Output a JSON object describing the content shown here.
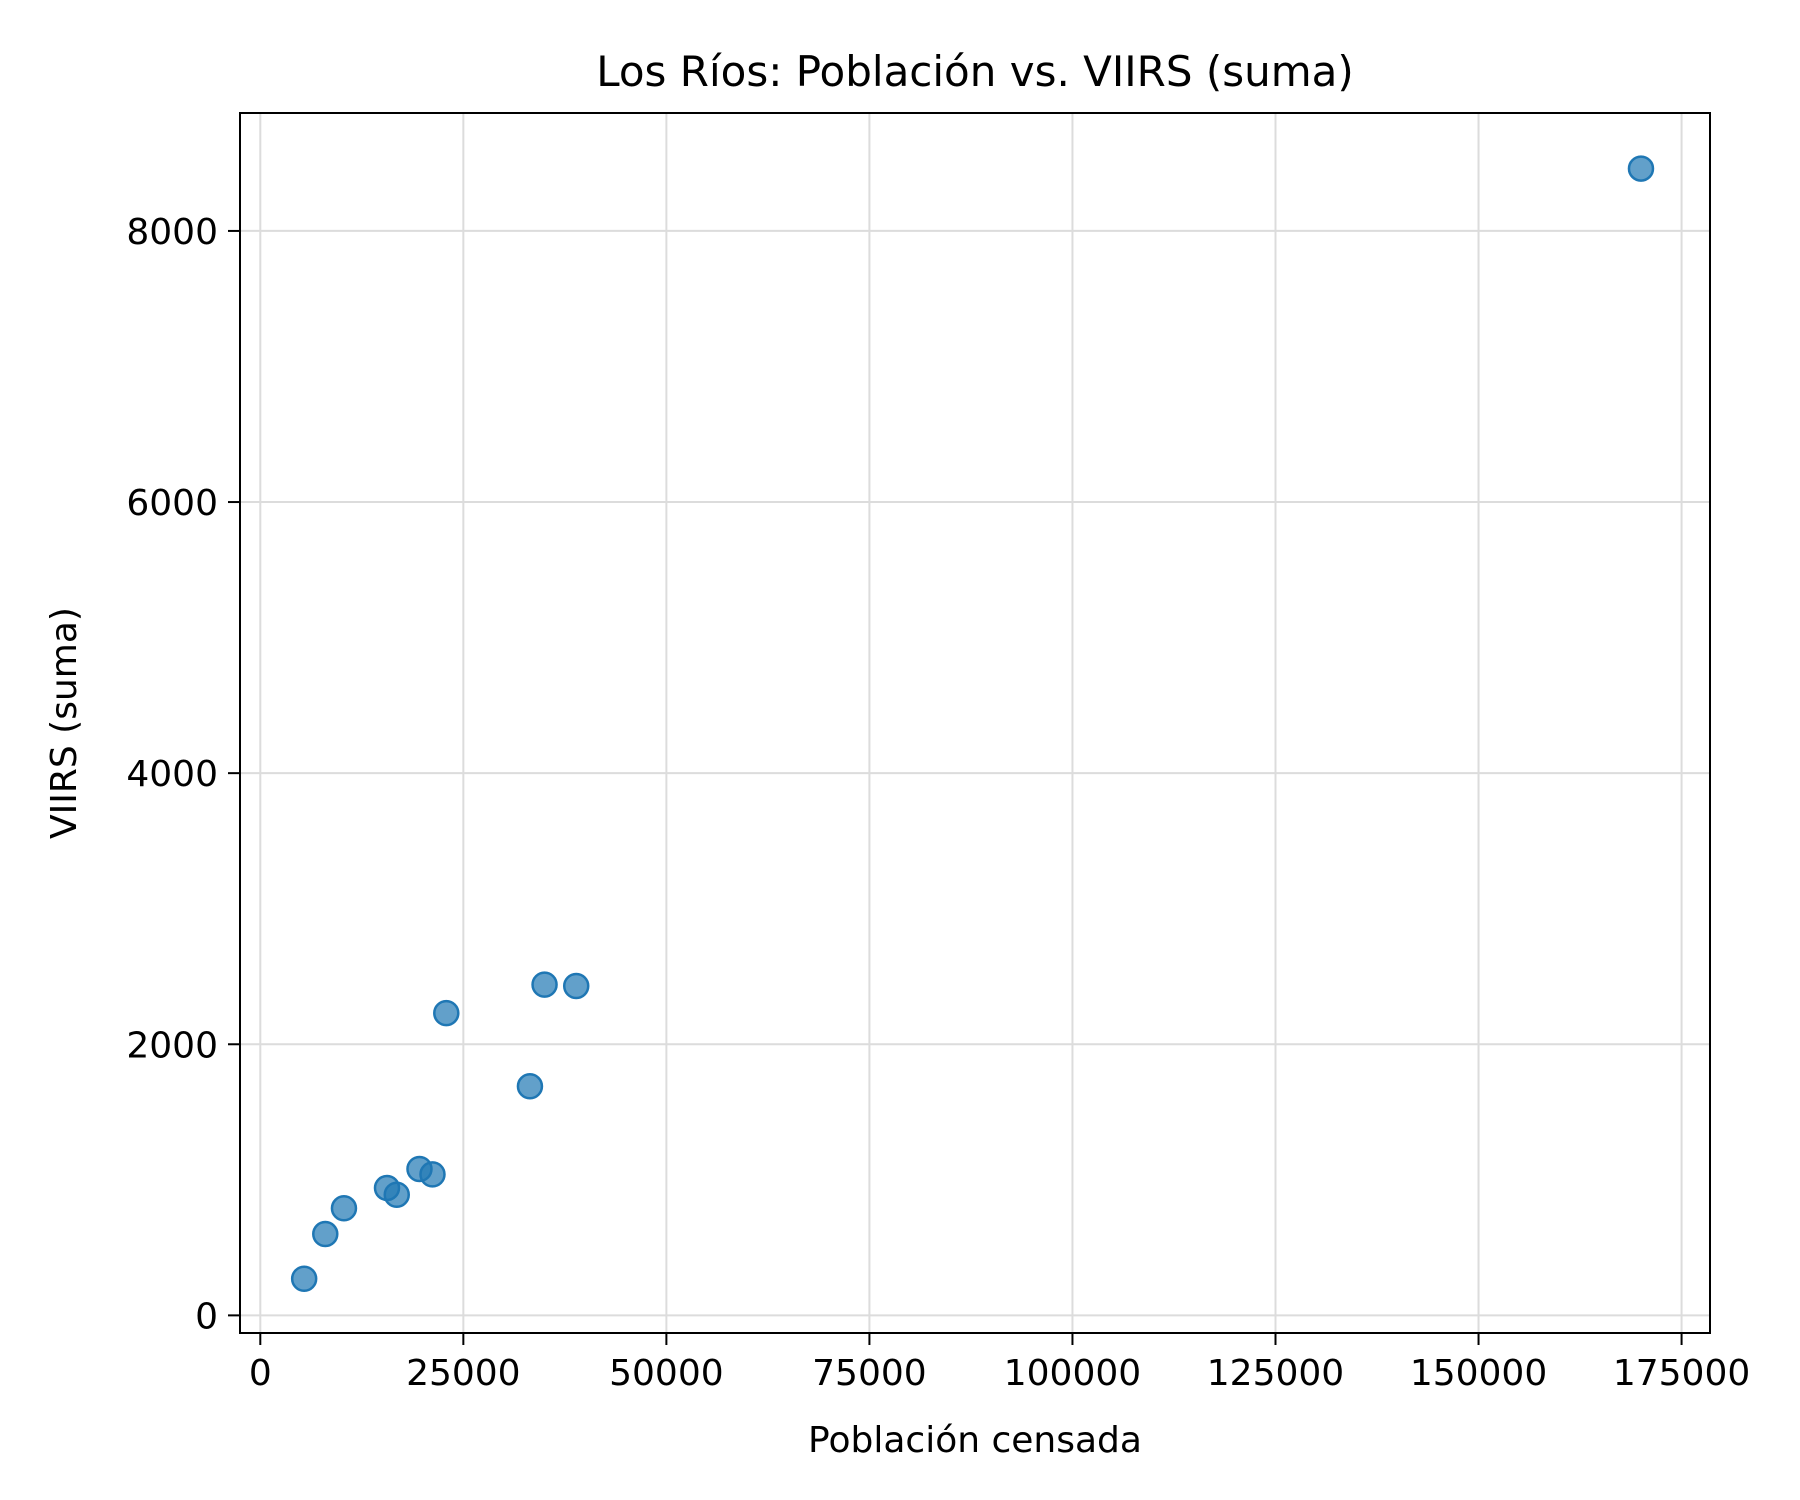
{
  "chart_data": {
    "type": "scatter",
    "title": "Los Ríos: Población vs. VIIRS (suma)",
    "xlabel": "Población censada",
    "ylabel": "VIIRS (suma)",
    "xlim": [
      -2500,
      178500
    ],
    "ylim": [
      -130,
      8870
    ],
    "x_ticks": [
      0,
      25000,
      50000,
      75000,
      100000,
      125000,
      150000,
      175000
    ],
    "y_ticks": [
      0,
      2000,
      4000,
      6000,
      8000
    ],
    "grid": true,
    "marker_color": "#1f77b4",
    "points": [
      {
        "x": 5400,
        "y": 270
      },
      {
        "x": 8000,
        "y": 600
      },
      {
        "x": 10300,
        "y": 790
      },
      {
        "x": 15600,
        "y": 940
      },
      {
        "x": 16800,
        "y": 890
      },
      {
        "x": 19600,
        "y": 1080
      },
      {
        "x": 21200,
        "y": 1040
      },
      {
        "x": 22900,
        "y": 2230
      },
      {
        "x": 33200,
        "y": 1690
      },
      {
        "x": 35000,
        "y": 2440
      },
      {
        "x": 38900,
        "y": 2430
      },
      {
        "x": 170000,
        "y": 8460
      }
    ]
  }
}
